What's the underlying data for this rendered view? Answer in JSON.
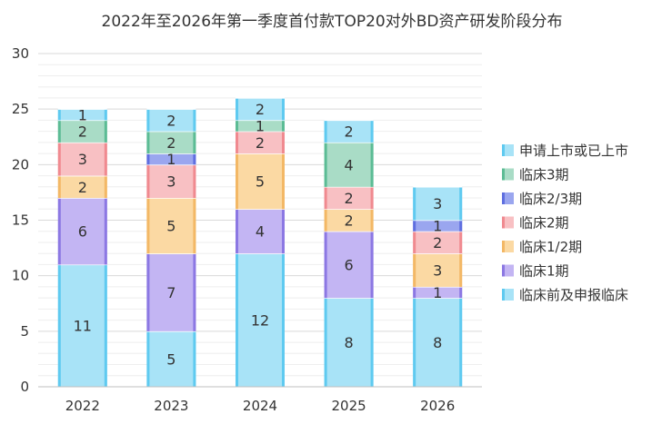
{
  "chart_data": {
    "type": "bar",
    "stacked": true,
    "title": "2022年至2026年第一季度首付款TOP20对外BD资产研发阶段分布",
    "categories": [
      "2022",
      "2023",
      "2024",
      "2025",
      "2026"
    ],
    "ylim": [
      0,
      30
    ],
    "yticks": [
      0,
      5,
      10,
      15,
      20,
      25,
      30
    ],
    "grid": true,
    "legend_position": "right",
    "series": [
      {
        "name": "临床前及申报临床",
        "color": "#a8e3f7",
        "edge": "#5fcaf0",
        "values": [
          11,
          5,
          12,
          8,
          8
        ]
      },
      {
        "name": "临床1期",
        "color": "#c3b5f3",
        "edge": "#8c78e3",
        "values": [
          6,
          7,
          4,
          6,
          1
        ]
      },
      {
        "name": "临床1/2期",
        "color": "#fbd9a3",
        "edge": "#f3b866",
        "values": [
          2,
          5,
          5,
          2,
          3
        ]
      },
      {
        "name": "临床2期",
        "color": "#f8c0c3",
        "edge": "#f08a90",
        "values": [
          3,
          3,
          2,
          2,
          2
        ]
      },
      {
        "name": "临床2/3期",
        "color": "#9aa6ef",
        "edge": "#5f6fe0",
        "values": [
          0,
          1,
          0,
          0,
          1
        ]
      },
      {
        "name": "临床3期",
        "color": "#a9dcc6",
        "edge": "#5cbc95",
        "values": [
          2,
          2,
          1,
          4,
          0
        ]
      },
      {
        "name": "申请上市或已上市",
        "color": "#a8e3f7",
        "edge": "#5fcaf0",
        "values": [
          1,
          2,
          2,
          2,
          3
        ]
      }
    ]
  }
}
